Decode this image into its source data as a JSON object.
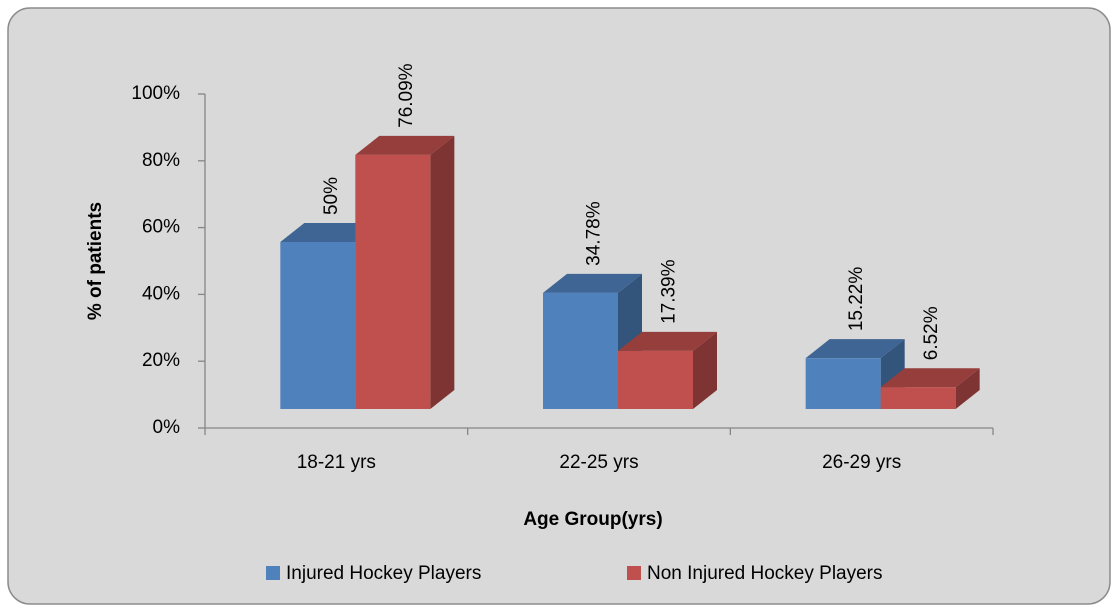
{
  "chart_data": {
    "type": "bar3d",
    "xlabel": "Age Group(yrs)",
    "ylabel": "% of patients",
    "categories": [
      "18-21 yrs",
      "22-25 yrs",
      "26-29 yrs"
    ],
    "series": [
      {
        "name": "Injured Hockey Players",
        "color": "#4f81bd",
        "values": [
          50,
          34.78,
          15.22
        ],
        "value_labels": [
          "50%",
          "34.78%",
          "15.22%"
        ]
      },
      {
        "name": "Non Injured Hockey Players",
        "color": "#c0504d",
        "values": [
          76.09,
          17.39,
          6.52
        ],
        "value_labels": [
          "76.09%",
          "17.39%",
          "6.52%"
        ]
      }
    ],
    "ylim": [
      0,
      100
    ],
    "yticks": [
      {
        "value": 0,
        "label": "0%"
      },
      {
        "value": 20,
        "label": "20%"
      },
      {
        "value": 40,
        "label": "40%"
      },
      {
        "value": 60,
        "label": "60%"
      },
      {
        "value": 80,
        "label": "80%"
      },
      {
        "value": 100,
        "label": "100%"
      }
    ],
    "legend": "bottom"
  }
}
